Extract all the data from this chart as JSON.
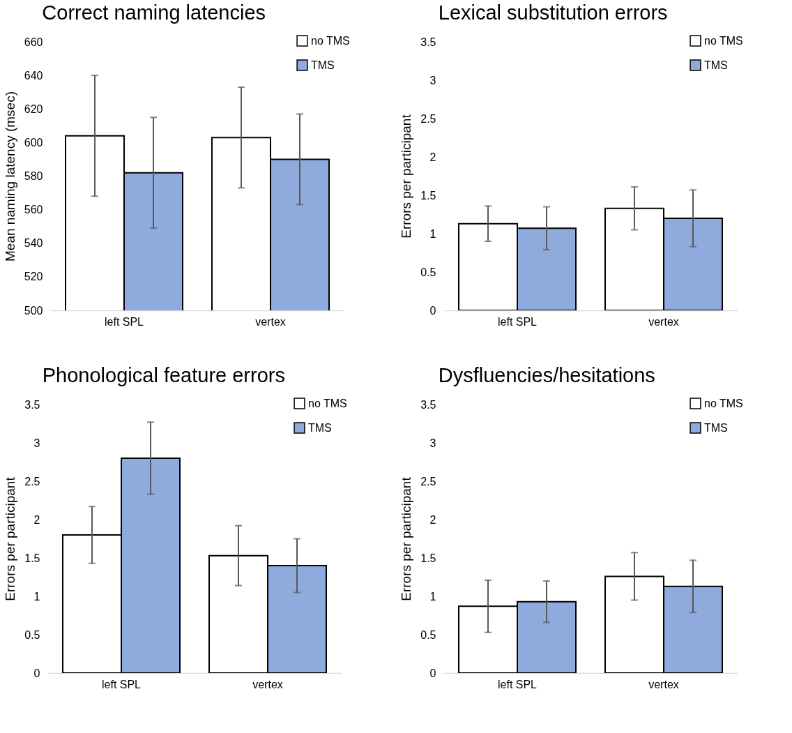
{
  "chart_data": [
    {
      "type": "bar",
      "title": "Correct naming latencies",
      "ylabel": "Mean naming latency (msec)",
      "categories": [
        "left SPL",
        "vertex"
      ],
      "ylim": [
        500,
        660
      ],
      "yticks": [
        500,
        520,
        540,
        560,
        580,
        600,
        620,
        640,
        660
      ],
      "grid": false,
      "legend": "top right",
      "series": [
        {
          "name": "no TMS",
          "color": "#ffffff",
          "values": [
            604,
            603
          ],
          "errors": [
            [
              568,
              640
            ],
            [
              573,
              633
            ]
          ]
        },
        {
          "name": "TMS",
          "color": "#8faadc",
          "values": [
            582,
            590
          ],
          "errors": [
            [
              549,
              615
            ],
            [
              563,
              617
            ]
          ]
        }
      ]
    },
    {
      "type": "bar",
      "title": "Lexical substitution errors",
      "ylabel": "Errors per participant",
      "categories": [
        "left SPL",
        "vertex"
      ],
      "ylim": [
        0,
        3.5
      ],
      "yticks": [
        0,
        0.5,
        1,
        1.5,
        2,
        2.5,
        3,
        3.5
      ],
      "grid": false,
      "legend": "top right",
      "series": [
        {
          "name": "no TMS",
          "color": "#ffffff",
          "values": [
            1.13,
            1.33
          ],
          "errors": [
            [
              0.9,
              1.36
            ],
            [
              1.05,
              1.61
            ]
          ]
        },
        {
          "name": "TMS",
          "color": "#8faadc",
          "values": [
            1.07,
            1.2
          ],
          "errors": [
            [
              0.79,
              1.35
            ],
            [
              0.83,
              1.57
            ]
          ]
        }
      ]
    },
    {
      "type": "bar",
      "title": "Phonological feature errors",
      "ylabel": "Errors per participant",
      "categories": [
        "left SPL",
        "vertex"
      ],
      "ylim": [
        0,
        3.5
      ],
      "yticks": [
        0,
        0.5,
        1,
        1.5,
        2,
        2.5,
        3,
        3.5
      ],
      "grid": false,
      "legend": "top right",
      "series": [
        {
          "name": "no TMS",
          "color": "#ffffff",
          "values": [
            1.8,
            1.53
          ],
          "errors": [
            [
              1.43,
              2.17
            ],
            [
              1.14,
              1.92
            ]
          ]
        },
        {
          "name": "TMS",
          "color": "#8faadc",
          "values": [
            2.8,
            1.4
          ],
          "errors": [
            [
              2.33,
              3.27
            ],
            [
              1.05,
              1.75
            ]
          ]
        }
      ]
    },
    {
      "type": "bar",
      "title": "Dysfluencies/hesitations",
      "ylabel": "Errors per participant",
      "categories": [
        "left SPL",
        "vertex"
      ],
      "ylim": [
        0,
        3.5
      ],
      "yticks": [
        0,
        0.5,
        1,
        1.5,
        2,
        2.5,
        3,
        3.5
      ],
      "grid": false,
      "legend": "top right",
      "series": [
        {
          "name": "no TMS",
          "color": "#ffffff",
          "values": [
            0.87,
            1.26
          ],
          "errors": [
            [
              0.53,
              1.21
            ],
            [
              0.95,
              1.57
            ]
          ]
        },
        {
          "name": "TMS",
          "color": "#8faadc",
          "values": [
            0.93,
            1.13
          ],
          "errors": [
            [
              0.66,
              1.2
            ],
            [
              0.79,
              1.47
            ]
          ]
        }
      ]
    }
  ]
}
